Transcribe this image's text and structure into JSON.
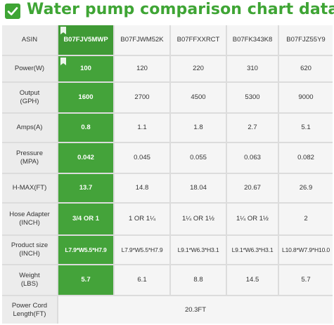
{
  "title": "Water pump comparison chart data",
  "colors": {
    "accent": "#44a33a",
    "title": "#3fa535"
  },
  "icons": {
    "title": "check-box-icon",
    "badge": "ribbon-badge-icon"
  },
  "table": {
    "header_label": "ASIN",
    "columns": [
      "B07FJV5MWP",
      "B07FJWM52K",
      "B07FFXXRCT",
      "B07FK343K8",
      "B07FJZ55Y9"
    ],
    "rows": [
      {
        "label": "Power(W)",
        "values": [
          "100",
          "120",
          "220",
          "310",
          "620"
        ]
      },
      {
        "label": "Output\n(GPH)",
        "values": [
          "1600",
          "2700",
          "4500",
          "5300",
          "9000"
        ]
      },
      {
        "label": "Amps(A)",
        "values": [
          "0.8",
          "1.1",
          "1.8",
          "2.7",
          "5.1"
        ]
      },
      {
        "label": "Pressure\n(MPA)",
        "values": [
          "0.042",
          "0.045",
          "0.055",
          "0.063",
          "0.082"
        ]
      },
      {
        "label": "H-MAX(FT)",
        "values": [
          "13.7",
          "14.8",
          "18.04",
          "20.67",
          "26.9"
        ]
      },
      {
        "label": "Hose Adapter\n(INCH)",
        "values": [
          "3/4 OR 1",
          "1 OR 1¼",
          "1¼ OR 1½",
          "1¼ OR 1½",
          "2"
        ]
      },
      {
        "label": "Product size\n(INCH)",
        "values": [
          "L7.9*W5.5*H7.9",
          "L7.9*W5.5*H7.9",
          "L9.1*W6.3*H3.1",
          "L9.1*W6.3*H3.1",
          "L10.8*W7.9*H10.0"
        ]
      },
      {
        "label": "Weight\n(LBS)",
        "values": [
          "5.7",
          "6.1",
          "8.8",
          "14.5",
          "5.7"
        ]
      }
    ],
    "footer": {
      "label": "Power Cord\nLength(FT)",
      "value": "20.3FT"
    }
  }
}
